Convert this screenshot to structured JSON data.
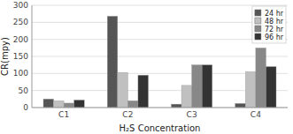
{
  "chart_data": {
    "type": "bar",
    "categories": [
      "C1",
      "C2",
      "C3",
      "C4"
    ],
    "series": [
      {
        "name": "24 hr",
        "color": "#555555",
        "values": [
          25,
          268,
          10,
          12
        ]
      },
      {
        "name": "48 hr",
        "color": "#c0c0c0",
        "values": [
          20,
          103,
          65,
          105
        ]
      },
      {
        "name": "72 hr",
        "color": "#888888",
        "values": [
          13,
          20,
          125,
          175
        ]
      },
      {
        "name": "96 hr",
        "color": "#333333",
        "values": [
          22,
          95,
          125,
          120
        ]
      }
    ],
    "xlabel": "H₂S Concentration",
    "ylabel": "CR(mpy)",
    "ylim": [
      0,
      300
    ],
    "yticks": [
      0,
      50,
      100,
      150,
      200,
      250,
      300
    ],
    "grid": true,
    "legend": "upper right"
  }
}
